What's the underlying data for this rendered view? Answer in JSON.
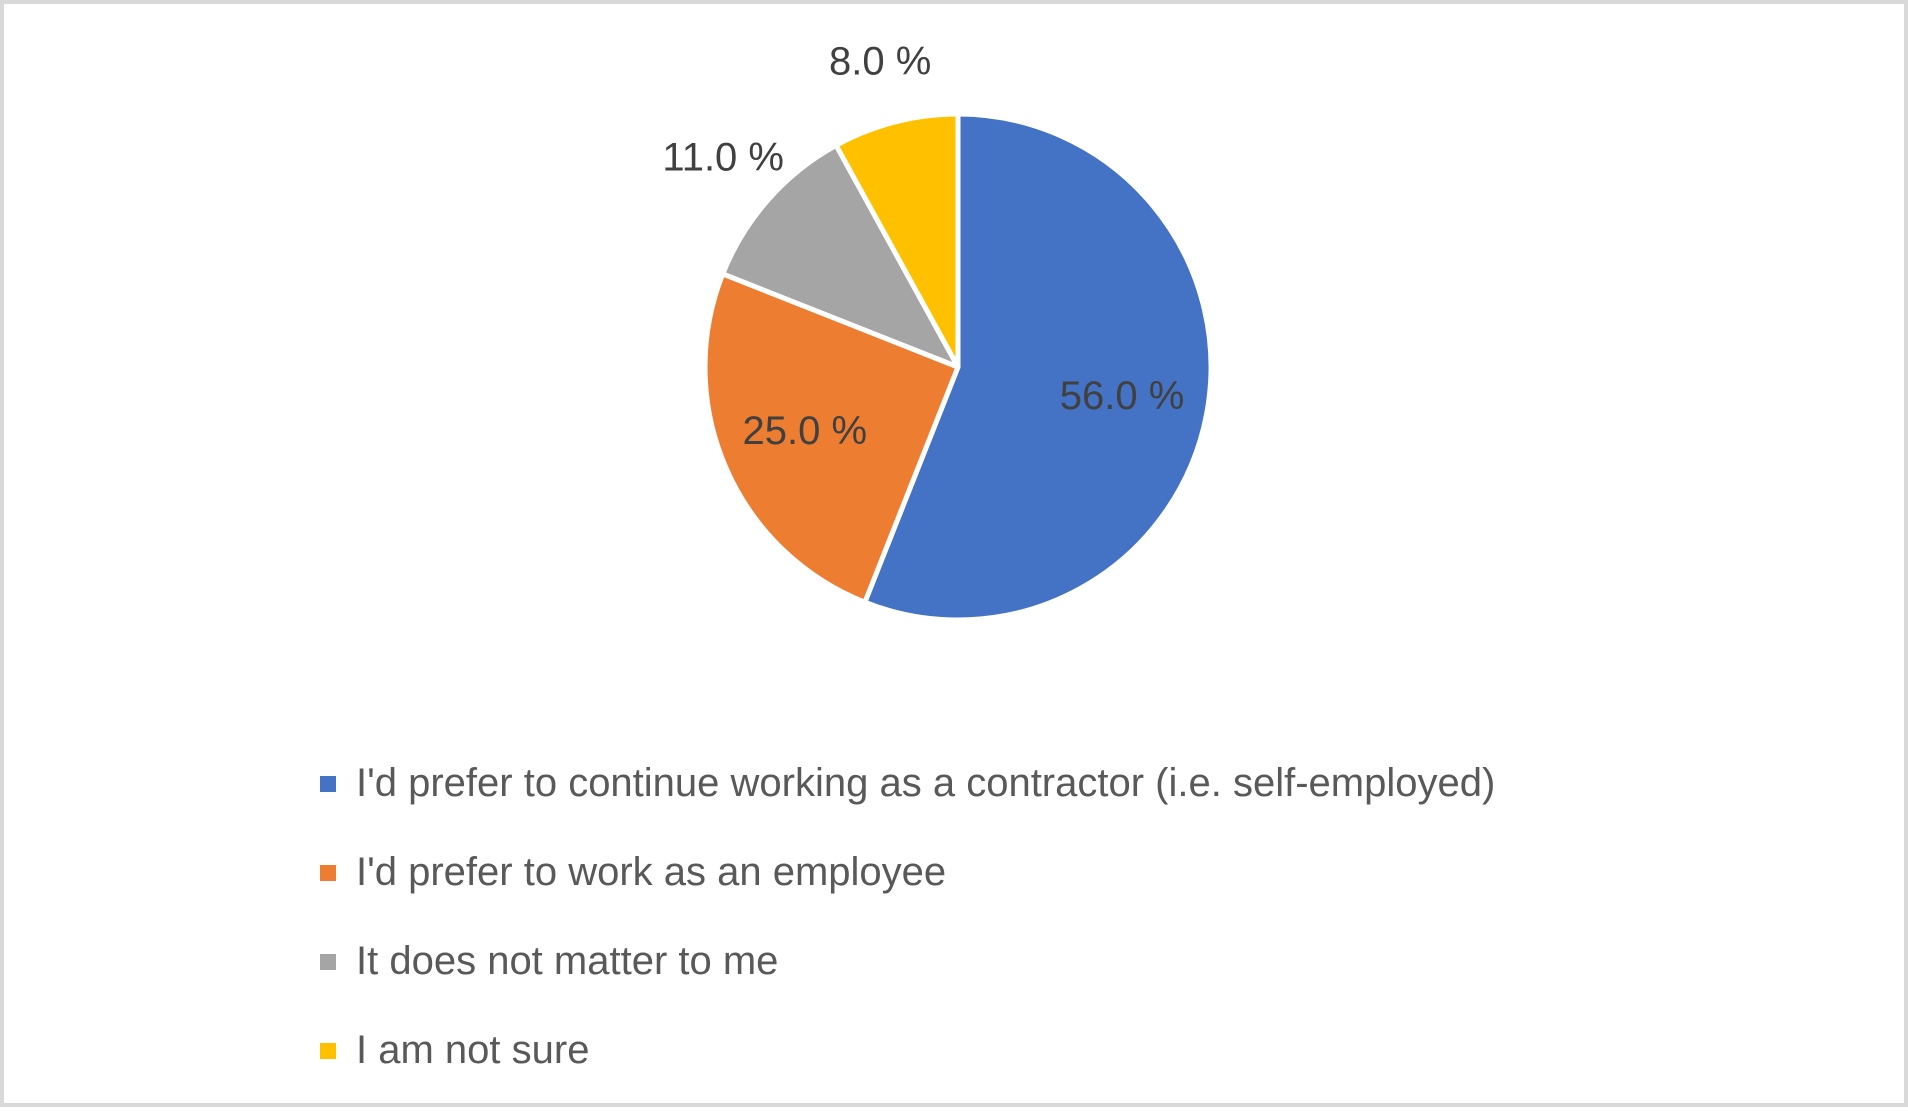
{
  "chart_data": {
    "type": "pie",
    "categories": [
      "I'd prefer to continue working as a contractor (i.e. self-employed)",
      "I'd prefer to work as an employee",
      "It does not matter to me",
      "I am not sure"
    ],
    "values": [
      56.0,
      25.0,
      11.0,
      8.0
    ],
    "data_labels": [
      "56.0 %",
      "25.0 %",
      "11.0 %",
      "8.0 %"
    ],
    "colors": [
      "#4472C4",
      "#ED7D31",
      "#A5A5A5",
      "#FFC000"
    ],
    "legend_position": "bottom",
    "title": ""
  }
}
